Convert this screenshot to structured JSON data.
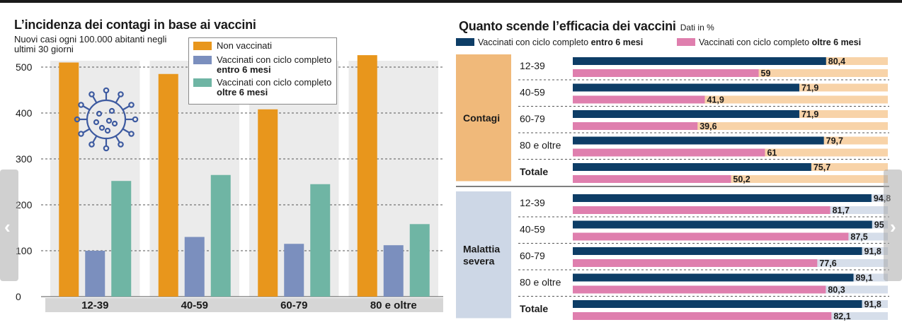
{
  "chart_data": [
    {
      "type": "bar",
      "title": "L’incidenza dei contagi in base ai vaccini",
      "subtitle": "Nuovi casi ogni 100.000 abitanti negli ultimi 30 giorni",
      "categories": [
        "12-39",
        "40-59",
        "60-79",
        "80 e oltre"
      ],
      "series": [
        {
          "name": "Non vaccinati",
          "color": "#e8961c",
          "values": [
            510,
            485,
            408,
            526
          ]
        },
        {
          "name": "Vaccinati con ciclo completo entro 6 mesi",
          "color": "#7b8fbe",
          "values": [
            100,
            130,
            115,
            112
          ]
        },
        {
          "name": "Vaccinati con ciclo completo oltre 6 mesi",
          "color": "#6fb5a4",
          "values": [
            252,
            265,
            245,
            158
          ]
        }
      ],
      "ylim": [
        0,
        500
      ],
      "yticks": [
        0,
        100,
        200,
        300,
        400,
        500
      ],
      "grid": true,
      "legend_items": [
        {
          "text": "Non vaccinati",
          "bold": ""
        },
        {
          "text": "Vaccinati con ciclo completo ",
          "bold": "entro 6 mesi"
        },
        {
          "text": "Vaccinati con ciclo completo ",
          "bold": "oltre 6 mesi"
        }
      ],
      "icon": "virus-icon"
    },
    {
      "type": "bar",
      "orientation": "horizontal",
      "title": "Quanto scende l’efficacia dei vaccini",
      "note": "Dati in %",
      "legend_items": [
        {
          "text": "Vaccinati con ciclo completo ",
          "bold": "entro 6 mesi",
          "color": "#0d3d66"
        },
        {
          "text": "Vaccinati con ciclo completo ",
          "bold": "oltre 6 mesi",
          "color": "#df7fae"
        }
      ],
      "xlim": [
        0,
        100
      ],
      "groups": [
        {
          "name": "Contagi",
          "bg": "#f0b97a",
          "track": "#f8d3a8",
          "rows": [
            {
              "label": "12-39",
              "entro": 80.4,
              "oltre": 59,
              "entro_label": "80,4",
              "oltre_label": "59"
            },
            {
              "label": "40-59",
              "entro": 71.9,
              "oltre": 41.9,
              "entro_label": "71,9",
              "oltre_label": "41,9"
            },
            {
              "label": "60-79",
              "entro": 71.9,
              "oltre": 39.6,
              "entro_label": "71,9",
              "oltre_label": "39,6"
            },
            {
              "label": "80 e oltre",
              "entro": 79.7,
              "oltre": 61,
              "entro_label": "79,7",
              "oltre_label": "61"
            },
            {
              "label": "Totale",
              "bold": true,
              "entro": 75.7,
              "oltre": 50.2,
              "entro_label": "75,7",
              "oltre_label": "50,2"
            }
          ]
        },
        {
          "name": "Malattia severa",
          "bg": "#cdd7e6",
          "track": "#d6deea",
          "rows": [
            {
              "label": "12-39",
              "entro": 94.8,
              "oltre": 81.7,
              "entro_label": "94,8",
              "oltre_label": "81,7"
            },
            {
              "label": "40-59",
              "entro": 95,
              "oltre": 87.5,
              "entro_label": "95",
              "oltre_label": "87,5"
            },
            {
              "label": "60-79",
              "entro": 91.8,
              "oltre": 77.6,
              "entro_label": "91,8",
              "oltre_label": "77,6"
            },
            {
              "label": "80 e oltre",
              "entro": 89.1,
              "oltre": 80.3,
              "entro_label": "89,1",
              "oltre_label": "80,3"
            },
            {
              "label": "Totale",
              "bold": true,
              "entro": 91.8,
              "oltre": 82.1,
              "entro_label": "91,8",
              "oltre_label": "82,1"
            }
          ]
        }
      ]
    }
  ],
  "nav": {
    "prev_icon": "chevron-left-icon",
    "next_icon": "chevron-right-icon",
    "prev_glyph": "‹",
    "next_glyph": "›"
  }
}
